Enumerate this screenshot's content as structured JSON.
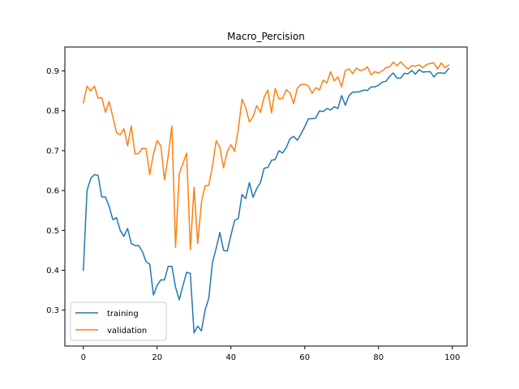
{
  "chart_data": {
    "type": "line",
    "title": "Macro_Percision",
    "xlabel": "",
    "ylabel": "",
    "xlim": [
      -5,
      104
    ],
    "ylim": [
      0.21,
      0.96
    ],
    "xticks": [
      0,
      20,
      40,
      60,
      80,
      100
    ],
    "yticks": [
      0.3,
      0.4,
      0.5,
      0.6,
      0.7,
      0.8,
      0.9
    ],
    "grid": false,
    "legend_position": "lower-left",
    "x": [
      0,
      1,
      2,
      3,
      4,
      5,
      6,
      7,
      8,
      9,
      10,
      11,
      12,
      13,
      14,
      15,
      16,
      17,
      18,
      19,
      20,
      21,
      22,
      23,
      24,
      25,
      26,
      27,
      28,
      29,
      30,
      31,
      32,
      33,
      34,
      35,
      36,
      37,
      38,
      39,
      40,
      41,
      42,
      43,
      44,
      45,
      46,
      47,
      48,
      49,
      50,
      51,
      52,
      53,
      54,
      55,
      56,
      57,
      58,
      59,
      60,
      61,
      62,
      63,
      64,
      65,
      66,
      67,
      68,
      69,
      70,
      71,
      72,
      73,
      74,
      75,
      76,
      77,
      78,
      79,
      80,
      81,
      82,
      83,
      84,
      85,
      86,
      87,
      88,
      89,
      90,
      91,
      92,
      93,
      94,
      95,
      96,
      97,
      98,
      99
    ],
    "series": [
      {
        "name": "training",
        "color": "#1f77b4",
        "values": [
          0.4,
          0.6,
          0.63,
          0.64,
          0.638,
          0.584,
          0.584,
          0.56,
          0.527,
          0.532,
          0.5,
          0.485,
          0.505,
          0.467,
          0.462,
          0.462,
          0.447,
          0.422,
          0.415,
          0.338,
          0.362,
          0.376,
          0.376,
          0.41,
          0.41,
          0.357,
          0.326,
          0.362,
          0.395,
          0.392,
          0.243,
          0.26,
          0.248,
          0.3,
          0.33,
          0.42,
          0.455,
          0.495,
          0.45,
          0.448,
          0.488,
          0.525,
          0.53,
          0.59,
          0.58,
          0.62,
          0.583,
          0.605,
          0.62,
          0.656,
          0.658,
          0.676,
          0.678,
          0.7,
          0.694,
          0.708,
          0.73,
          0.736,
          0.726,
          0.742,
          0.76,
          0.78,
          0.78,
          0.782,
          0.8,
          0.798,
          0.806,
          0.802,
          0.81,
          0.806,
          0.838,
          0.814,
          0.838,
          0.847,
          0.847,
          0.848,
          0.852,
          0.851,
          0.86,
          0.86,
          0.864,
          0.872,
          0.874,
          0.886,
          0.895,
          0.882,
          0.882,
          0.894,
          0.893,
          0.901,
          0.892,
          0.903,
          0.897,
          0.898,
          0.898,
          0.885,
          0.895,
          0.895,
          0.894,
          0.906
        ]
      },
      {
        "name": "validation",
        "color": "#ff7f0e",
        "values": [
          0.82,
          0.862,
          0.85,
          0.862,
          0.832,
          0.833,
          0.796,
          0.823,
          0.785,
          0.745,
          0.74,
          0.755,
          0.712,
          0.762,
          0.692,
          0.693,
          0.706,
          0.705,
          0.64,
          0.692,
          0.725,
          0.712,
          0.627,
          0.686,
          0.762,
          0.458,
          0.642,
          0.668,
          0.694,
          0.452,
          0.608,
          0.467,
          0.57,
          0.612,
          0.613,
          0.662,
          0.725,
          0.708,
          0.657,
          0.697,
          0.715,
          0.698,
          0.754,
          0.829,
          0.808,
          0.772,
          0.785,
          0.813,
          0.796,
          0.834,
          0.852,
          0.795,
          0.856,
          0.83,
          0.831,
          0.853,
          0.845,
          0.818,
          0.857,
          0.866,
          0.867,
          0.862,
          0.844,
          0.858,
          0.852,
          0.877,
          0.87,
          0.898,
          0.875,
          0.885,
          0.86,
          0.901,
          0.905,
          0.893,
          0.907,
          0.901,
          0.903,
          0.91,
          0.89,
          0.898,
          0.895,
          0.9,
          0.908,
          0.91,
          0.922,
          0.913,
          0.923,
          0.913,
          0.905,
          0.913,
          0.912,
          0.915,
          0.908,
          0.916,
          0.919,
          0.92,
          0.905,
          0.92,
          0.908,
          0.915
        ]
      }
    ]
  }
}
